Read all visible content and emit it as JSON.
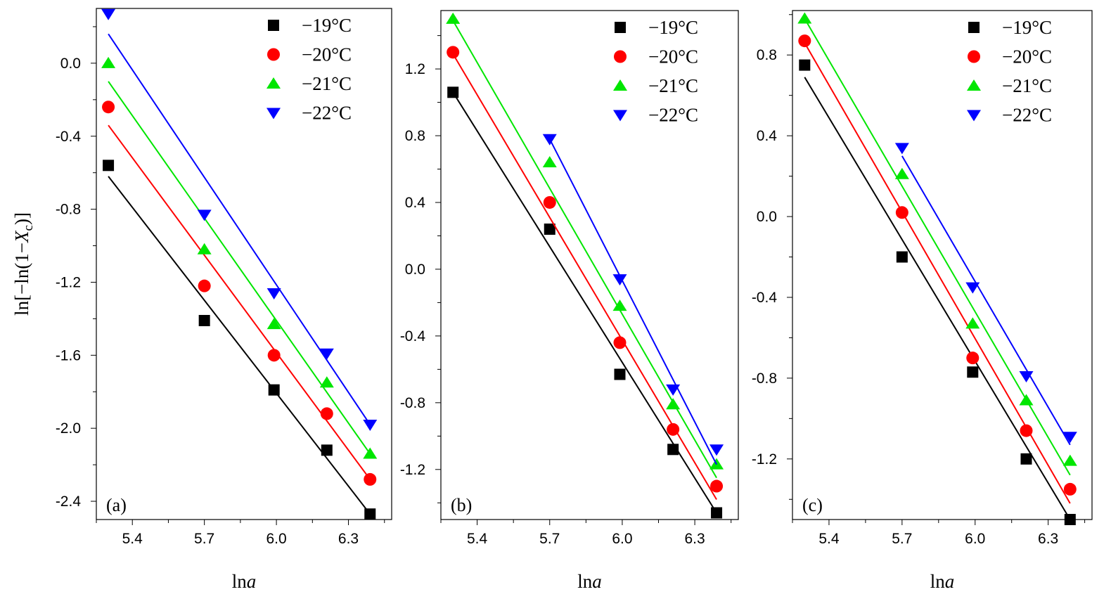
{
  "series_style": [
    {
      "color": "#000000",
      "marker": "square"
    },
    {
      "color": "#ff0000",
      "marker": "circle"
    },
    {
      "color": "#00e600",
      "marker": "triangle-up"
    },
    {
      "color": "#0000ff",
      "marker": "triangle-down"
    }
  ],
  "chart_data": [
    {
      "type": "scatter",
      "panel_label": "(a)",
      "xlabel": "lna",
      "ylabel": "ln[−ln(1−Xc)]",
      "xlim": [
        5.25,
        6.48
      ],
      "ylim": [
        -2.5,
        0.3
      ],
      "xticks": [
        5.4,
        5.7,
        6.0,
        6.3
      ],
      "xtick_labels": [
        "5.4",
        "5.7",
        "6.0",
        "6.3"
      ],
      "yticks": [
        -2.4,
        -2.0,
        -1.6,
        -1.2,
        -0.8,
        -0.4,
        0.0
      ],
      "ytick_labels": [
        "-2.4",
        "-2.0",
        "-1.6",
        "-1.2",
        "-0.8",
        "-0.4",
        "0.0"
      ],
      "grid": false,
      "legend_position": "top-right",
      "series": [
        {
          "name": "−19°C",
          "x": [
            5.3,
            5.7,
            5.99,
            6.21,
            6.39
          ],
          "y": [
            -0.56,
            -1.41,
            -1.79,
            -2.12,
            -2.47
          ],
          "fit": [
            [
              5.3,
              -0.62
            ],
            [
              6.39,
              -2.47
            ]
          ]
        },
        {
          "name": "−20°C",
          "x": [
            5.3,
            5.7,
            5.99,
            6.21,
            6.39
          ],
          "y": [
            -0.24,
            -1.22,
            -1.6,
            -1.92,
            -2.28
          ],
          "fit": [
            [
              5.3,
              -0.34
            ],
            [
              6.39,
              -2.28
            ]
          ]
        },
        {
          "name": "−21°C",
          "x": [
            5.3,
            5.7,
            5.99,
            6.21,
            6.39
          ],
          "y": [
            0.0,
            -1.02,
            -1.43,
            -1.75,
            -2.14
          ],
          "fit": [
            [
              5.3,
              -0.1
            ],
            [
              6.39,
              -2.14
            ]
          ]
        },
        {
          "name": "−22°C",
          "x": [
            5.3,
            5.7,
            5.99,
            6.21,
            6.39
          ],
          "y": [
            0.27,
            -0.83,
            -1.26,
            -1.59,
            -1.98
          ],
          "fit": [
            [
              5.3,
              0.16
            ],
            [
              6.39,
              -1.98
            ]
          ]
        }
      ]
    },
    {
      "type": "scatter",
      "panel_label": "(b)",
      "xlabel": "lna",
      "ylabel": "",
      "xlim": [
        5.25,
        6.48
      ],
      "ylim": [
        -1.5,
        1.55
      ],
      "xticks": [
        5.4,
        5.7,
        6.0,
        6.3
      ],
      "xtick_labels": [
        "5.4",
        "5.7",
        "6.0",
        "6.3"
      ],
      "yticks": [
        -1.2,
        -0.8,
        -0.4,
        0.0,
        0.4,
        0.8,
        1.2
      ],
      "ytick_labels": [
        "-1.2",
        "-0.8",
        "-0.4",
        "0.0",
        "0.4",
        "0.8",
        "1.2"
      ],
      "grid": false,
      "legend_position": "top-right",
      "series": [
        {
          "name": "−19°C",
          "x": [
            5.3,
            5.7,
            5.99,
            6.21,
            6.39
          ],
          "y": [
            1.06,
            0.24,
            -0.63,
            -1.08,
            -1.46
          ],
          "fit": [
            [
              5.3,
              1.06
            ],
            [
              6.39,
              -1.46
            ]
          ]
        },
        {
          "name": "−20°C",
          "x": [
            5.3,
            5.7,
            5.99,
            6.21,
            6.39
          ],
          "y": [
            1.3,
            0.4,
            -0.44,
            -0.96,
            -1.3
          ],
          "fit": [
            [
              5.3,
              1.29
            ],
            [
              6.39,
              -1.38
            ]
          ]
        },
        {
          "name": "−21°C",
          "x": [
            5.3,
            5.7,
            5.99,
            6.21,
            6.39
          ],
          "y": [
            1.5,
            0.64,
            -0.22,
            -0.81,
            -1.17
          ],
          "fit": [
            [
              5.3,
              1.49
            ],
            [
              6.39,
              -1.25
            ]
          ]
        },
        {
          "name": "−22°C",
          "x": [
            5.7,
            5.99,
            6.21,
            6.39
          ],
          "y": [
            0.78,
            -0.06,
            -0.72,
            -1.08
          ],
          "fit": [
            [
              5.7,
              0.78
            ],
            [
              6.39,
              -1.17
            ]
          ]
        }
      ]
    },
    {
      "type": "scatter",
      "panel_label": "(c)",
      "xlabel": "lna",
      "ylabel": "",
      "xlim": [
        5.25,
        6.48
      ],
      "ylim": [
        -1.5,
        1.02
      ],
      "xticks": [
        5.4,
        5.7,
        6.0,
        6.3
      ],
      "xtick_labels": [
        "5.4",
        "5.7",
        "6.0",
        "6.3"
      ],
      "yticks": [
        -1.2,
        -0.8,
        -0.4,
        0.0,
        0.4,
        0.8
      ],
      "ytick_labels": [
        "-1.2",
        "-0.8",
        "-0.4",
        "0.0",
        "0.4",
        "0.8"
      ],
      "grid": false,
      "legend_position": "top-right",
      "series": [
        {
          "name": "−19°C",
          "x": [
            5.3,
            5.7,
            5.99,
            6.21,
            6.39
          ],
          "y": [
            0.75,
            -0.2,
            -0.77,
            -1.2,
            -1.5
          ],
          "fit": [
            [
              5.3,
              0.69
            ],
            [
              6.39,
              -1.5
            ]
          ]
        },
        {
          "name": "−20°C",
          "x": [
            5.3,
            5.7,
            5.99,
            6.21,
            6.39
          ],
          "y": [
            0.87,
            0.02,
            -0.7,
            -1.06,
            -1.35
          ],
          "fit": [
            [
              5.3,
              0.86
            ],
            [
              6.39,
              -1.42
            ]
          ]
        },
        {
          "name": "−21°C",
          "x": [
            5.3,
            5.7,
            5.99,
            6.21,
            6.39
          ],
          "y": [
            0.98,
            0.21,
            -0.53,
            -0.91,
            -1.21
          ],
          "fit": [
            [
              5.3,
              0.98
            ],
            [
              6.39,
              -1.28
            ]
          ]
        },
        {
          "name": "−22°C",
          "x": [
            5.7,
            5.99,
            6.21,
            6.39
          ],
          "y": [
            0.34,
            -0.35,
            -0.79,
            -1.09
          ],
          "fit": [
            [
              5.7,
              0.3
            ],
            [
              6.39,
              -1.13
            ]
          ]
        }
      ]
    }
  ]
}
